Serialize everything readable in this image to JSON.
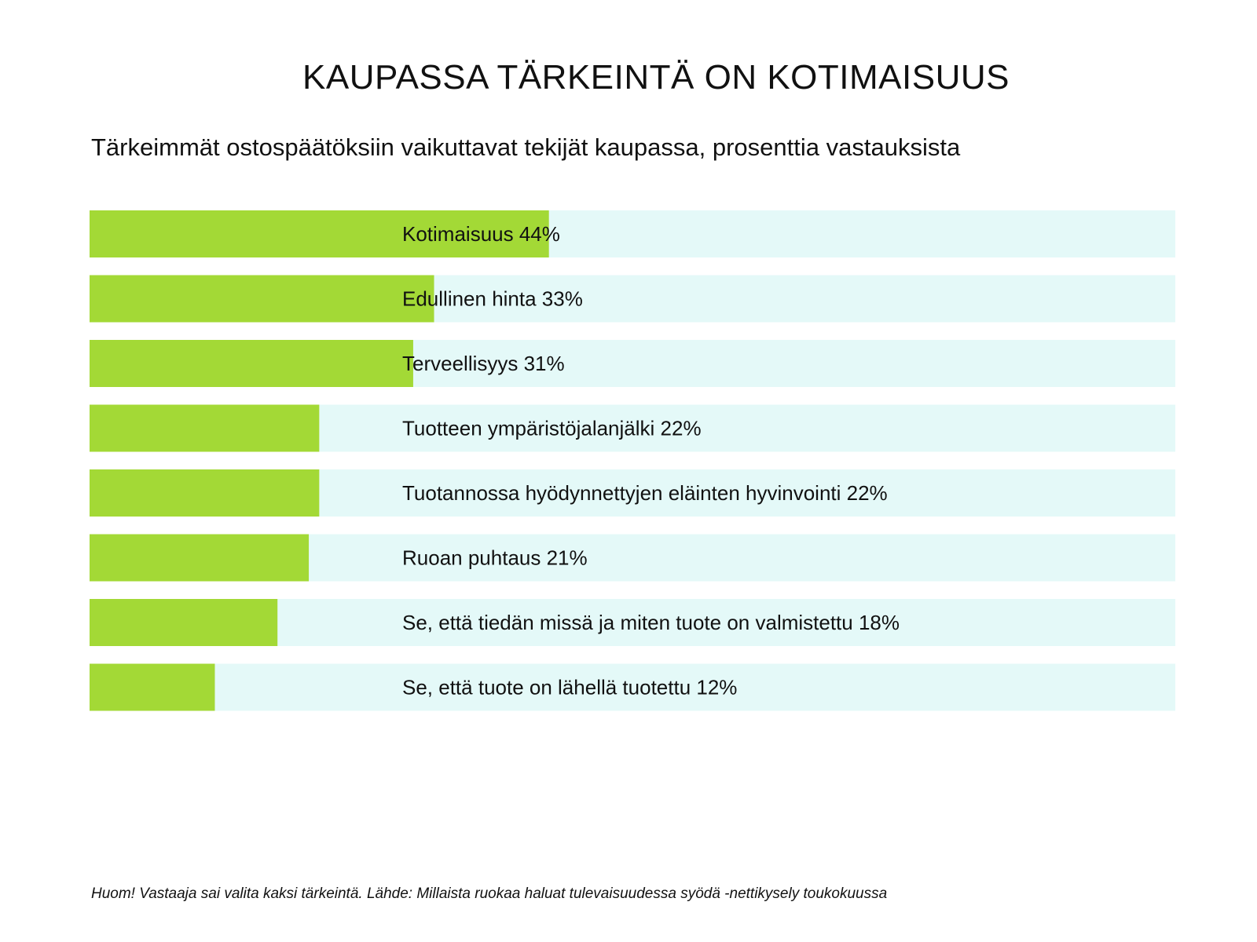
{
  "title": "KAUPASSA TÄRKEINTÄ ON KOTIMAISUUS",
  "subtitle": "Tärkeimmät ostospäätöksiin vaikuttavat tekijät kaupassa, prosenttia vastauksista",
  "footnote": "Huom! Vastaaja sai valita kaksi tärkeintä. Lähde: Millaista ruokaa haluat tulevaisuudessa syödä -nettikysely toukokuussa",
  "colors": {
    "bar": "#a3d936",
    "track": "#e4f9f8",
    "text": "#111111"
  },
  "chart_data": {
    "type": "bar",
    "orientation": "horizontal",
    "categories": [
      "Kotimaisuus",
      "Edullinen hinta",
      "Terveellisyys",
      "Tuotteen ympäristöjalanjälki",
      "Tuotannossa hyödynnettyjen eläinten hyvinvointi",
      "Ruoan puhtaus",
      "Se, että tiedän missä ja miten tuote on valmistettu",
      "Se, että tuote on lähellä tuotettu"
    ],
    "values": [
      44,
      33,
      31,
      22,
      22,
      21,
      18,
      12
    ],
    "labels": [
      "Kotimaisuus 44%",
      "Edullinen hinta 33%",
      "Terveellisyys 31%",
      "Tuotteen ympäristöjalanjälki 22%",
      "Tuotannossa hyödynnettyjen eläinten hyvinvointi 22%",
      "Ruoan puhtaus 21%",
      "Se, että tiedän missä ja miten tuote on valmistettu 18%",
      "Se, että tuote on lähellä tuotettu 12%"
    ],
    "unit": "%",
    "xlim": [
      0,
      104
    ],
    "grid": false,
    "legend": "none"
  }
}
